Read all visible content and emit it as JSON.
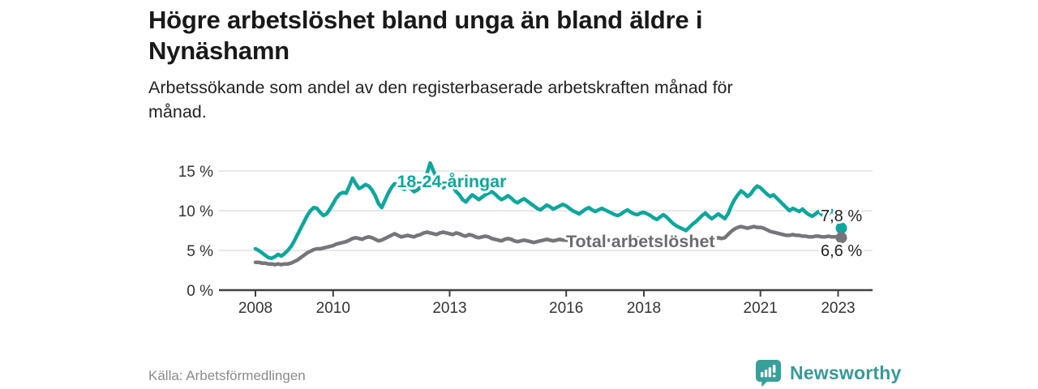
{
  "header": {
    "title": "Högre arbetslöshet bland unga än bland äldre i\nNynäshamn",
    "subtitle": "Arbetssökande som andel av den registerbaserade arbetskraften månad för\nmånad."
  },
  "footer": {
    "source": "Källa: Arbetsförmedlingen",
    "brand": "Newsworthy"
  },
  "colors": {
    "young": "#0da69c",
    "young_label": "#0da69c",
    "total": "#76767a",
    "total_label": "#6b6b70",
    "value_label": "#1f1f1f",
    "grid": "#d9d9d9",
    "axis": "#404040",
    "tick_text": "#333333",
    "brand": "#3a9e9a"
  },
  "chart_data": {
    "type": "line",
    "unit": "%",
    "frequency": "monthly",
    "x_start": "2008-01",
    "x_end": "2023-02",
    "grid": "horizontal",
    "legend": "inline-labels",
    "y_axis": {
      "range": [
        0,
        16.5
      ],
      "ticks": [
        {
          "value": 0,
          "label": "0 %"
        },
        {
          "value": 5,
          "label": "5 %"
        },
        {
          "value": 10,
          "label": "10 %"
        },
        {
          "value": 15,
          "label": "15 %"
        }
      ]
    },
    "x_axis": {
      "ticks": [
        {
          "year": 2008,
          "label": "2008"
        },
        {
          "year": 2010,
          "label": "2010"
        },
        {
          "year": 2013,
          "label": "2013"
        },
        {
          "year": 2016,
          "label": "2016"
        },
        {
          "year": 2018,
          "label": "2018"
        },
        {
          "year": 2021,
          "label": "2021"
        },
        {
          "year": 2023,
          "label": "2023"
        }
      ]
    },
    "series": [
      {
        "name": "18-24-åringar",
        "color_key": "young",
        "label_color_key": "young_label",
        "end_label": "7,8 %",
        "end_value": 7.8,
        "values": [
          5.2,
          5.0,
          4.7,
          4.4,
          4.1,
          4.0,
          4.2,
          4.5,
          4.3,
          4.6,
          5.0,
          5.5,
          6.2,
          7.0,
          7.8,
          8.6,
          9.4,
          10.0,
          10.4,
          10.3,
          9.8,
          9.4,
          9.6,
          10.2,
          10.9,
          11.6,
          12.1,
          12.3,
          12.2,
          13.1,
          14.1,
          13.4,
          12.8,
          13.0,
          13.3,
          13.1,
          12.6,
          11.9,
          10.9,
          10.4,
          11.3,
          12.2,
          12.9,
          13.4,
          13.2,
          12.9,
          12.7,
          13.0,
          12.8,
          12.4,
          12.6,
          13.0,
          13.6,
          14.7,
          16.0,
          15.0,
          14.1,
          13.4,
          12.9,
          13.3,
          13.6,
          13.0,
          12.4,
          12.0,
          11.4,
          11.1,
          11.6,
          12.0,
          11.7,
          11.4,
          11.7,
          12.0,
          12.2,
          12.4,
          12.1,
          11.7,
          11.4,
          11.6,
          11.9,
          11.6,
          11.2,
          11.0,
          11.3,
          11.5,
          11.2,
          10.9,
          10.6,
          10.3,
          10.1,
          10.4,
          10.7,
          10.5,
          10.2,
          10.4,
          10.6,
          10.8,
          10.6,
          10.3,
          10.0,
          9.8,
          9.6,
          9.9,
          10.2,
          10.4,
          10.1,
          9.9,
          10.1,
          10.3,
          10.1,
          9.9,
          9.7,
          9.5,
          9.4,
          9.6,
          9.9,
          10.1,
          9.8,
          9.6,
          9.5,
          9.7,
          9.8,
          9.6,
          9.4,
          9.1,
          8.9,
          9.2,
          9.5,
          9.2,
          8.8,
          8.4,
          8.1,
          7.9,
          7.7,
          7.5,
          7.9,
          8.3,
          8.6,
          9.0,
          9.4,
          9.7,
          9.3,
          9.0,
          9.3,
          9.6,
          9.3,
          9.0,
          9.6,
          10.6,
          11.4,
          12.0,
          12.5,
          12.2,
          11.8,
          12.1,
          12.7,
          13.1,
          12.9,
          12.5,
          12.1,
          11.8,
          12.0,
          11.6,
          11.2,
          10.8,
          10.4,
          10.0,
          10.3,
          10.1,
          9.9,
          10.2,
          9.8,
          9.5,
          9.3,
          9.6,
          9.9,
          9.5,
          9.2,
          9.6,
          10.0,
          9.7,
          8.6,
          7.8
        ]
      },
      {
        "name": "Total arbetslöshet",
        "color_key": "total",
        "label_color_key": "total_label",
        "end_label": "6,6 %",
        "end_value": 6.6,
        "values": [
          3.5,
          3.5,
          3.4,
          3.4,
          3.3,
          3.3,
          3.2,
          3.3,
          3.2,
          3.3,
          3.3,
          3.4,
          3.6,
          3.8,
          4.1,
          4.4,
          4.7,
          4.9,
          5.1,
          5.2,
          5.2,
          5.3,
          5.4,
          5.5,
          5.6,
          5.8,
          5.9,
          6.0,
          6.1,
          6.3,
          6.5,
          6.6,
          6.5,
          6.4,
          6.6,
          6.7,
          6.6,
          6.4,
          6.2,
          6.3,
          6.5,
          6.7,
          6.9,
          7.1,
          6.9,
          6.7,
          6.8,
          6.9,
          6.8,
          6.7,
          6.9,
          7.0,
          7.2,
          7.3,
          7.2,
          7.1,
          7.0,
          7.2,
          7.3,
          7.2,
          7.1,
          7.0,
          7.2,
          7.1,
          6.9,
          6.8,
          7.0,
          6.9,
          6.7,
          6.6,
          6.7,
          6.8,
          6.7,
          6.5,
          6.4,
          6.3,
          6.2,
          6.4,
          6.5,
          6.4,
          6.2,
          6.1,
          6.2,
          6.3,
          6.2,
          6.1,
          6.0,
          6.1,
          6.2,
          6.3,
          6.4,
          6.3,
          6.2,
          6.3,
          6.4,
          6.3,
          6.3,
          6.2,
          6.1,
          6.2,
          6.3,
          6.4,
          6.5,
          6.4,
          6.3,
          6.4,
          6.5,
          6.4,
          6.4,
          6.3,
          6.2,
          6.3,
          6.4,
          6.5,
          6.6,
          6.5,
          6.4,
          6.5,
          6.6,
          6.5,
          6.5,
          6.4,
          6.3,
          6.2,
          6.1,
          6.2,
          6.3,
          6.2,
          6.1,
          6.0,
          6.1,
          6.2,
          6.1,
          6.0,
          6.1,
          6.2,
          6.3,
          6.4,
          6.5,
          6.4,
          6.3,
          6.4,
          6.5,
          6.6,
          6.5,
          6.6,
          7.0,
          7.4,
          7.7,
          7.9,
          8.0,
          7.9,
          7.8,
          7.9,
          8.0,
          7.9,
          7.9,
          7.8,
          7.6,
          7.4,
          7.3,
          7.2,
          7.1,
          7.0,
          6.9,
          6.9,
          7.0,
          6.9,
          6.9,
          6.8,
          6.8,
          6.7,
          6.7,
          6.8,
          6.8,
          6.7,
          6.7,
          6.8,
          6.7,
          6.7,
          6.7,
          6.6
        ]
      }
    ]
  }
}
